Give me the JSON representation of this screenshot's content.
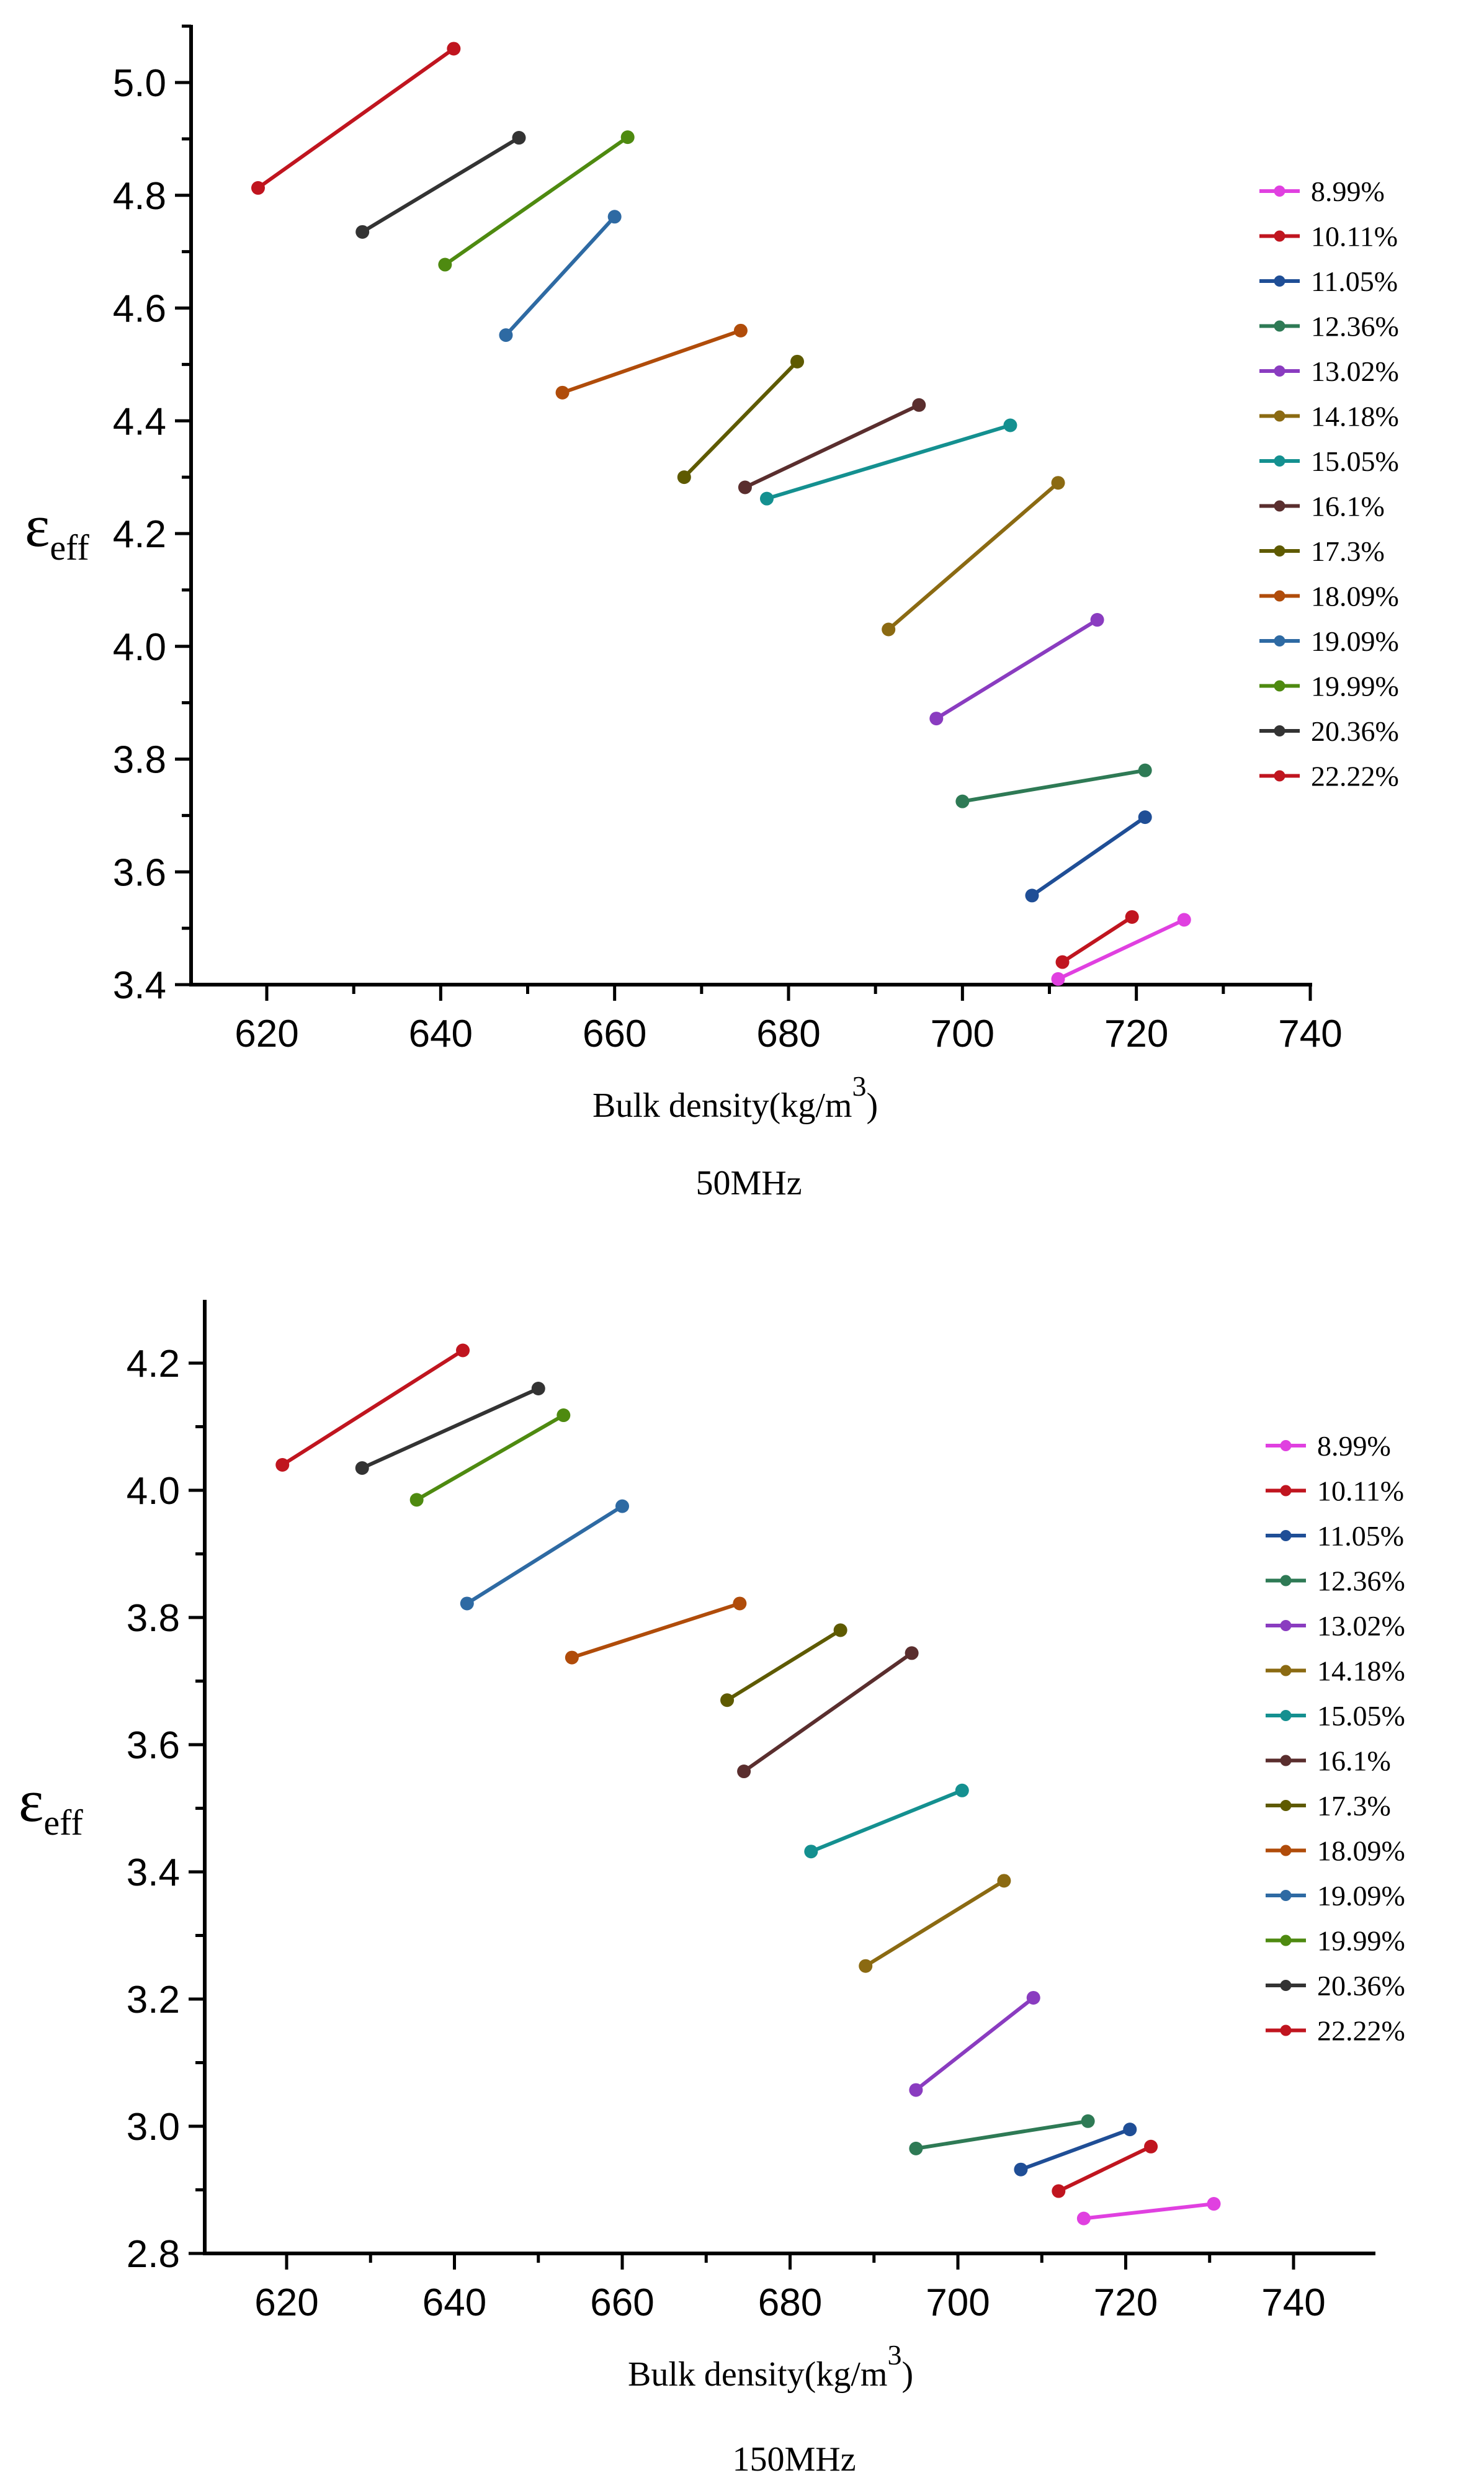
{
  "chart_data": [
    {
      "type": "line",
      "caption": "50MHz",
      "xlabel": "Bulk density(kg/m",
      "xlabel_sup": "3",
      "xlabel_close": ")",
      "ylabel": "ε",
      "ylabel_sub": "eff",
      "xlim": [
        610,
        740
      ],
      "ylim": [
        3.4,
        5.1
      ],
      "xticks": [
        "620",
        "640",
        "660",
        "680",
        "700",
        "720",
        "740"
      ],
      "yticks": [
        "3.4",
        "3.6",
        "3.8",
        "4.0",
        "4.2",
        "4.4",
        "4.6",
        "4.8",
        "5.0"
      ],
      "series": [
        {
          "name": "8.99%",
          "color": "#e040e0",
          "points": [
            [
              711.0,
              3.41
            ],
            [
              725.5,
              3.515
            ]
          ]
        },
        {
          "name": "10.11%",
          "color": "#c0151f",
          "points": [
            [
              711.5,
              3.44
            ],
            [
              719.5,
              3.52
            ]
          ]
        },
        {
          "name": "11.05%",
          "color": "#1f4e96",
          "points": [
            [
              708.0,
              3.558
            ],
            [
              721.0,
              3.697
            ]
          ]
        },
        {
          "name": "12.36%",
          "color": "#2e7a55",
          "points": [
            [
              700.0,
              3.725
            ],
            [
              721.0,
              3.78
            ]
          ]
        },
        {
          "name": "13.02%",
          "color": "#8a3cc0",
          "points": [
            [
              697.0,
              3.872
            ],
            [
              715.5,
              4.047
            ]
          ]
        },
        {
          "name": "14.18%",
          "color": "#8b6a12",
          "points": [
            [
              691.5,
              4.03
            ],
            [
              711.0,
              4.29
            ]
          ]
        },
        {
          "name": "15.05%",
          "color": "#149090",
          "points": [
            [
              677.5,
              4.262
            ],
            [
              705.5,
              4.392
            ]
          ]
        },
        {
          "name": "16.1%",
          "color": "#5a2e2e",
          "points": [
            [
              675.0,
              4.282
            ],
            [
              695.0,
              4.428
            ]
          ]
        },
        {
          "name": "17.3%",
          "color": "#5e5a00",
          "points": [
            [
              668.0,
              4.3
            ],
            [
              681.0,
              4.505
            ]
          ]
        },
        {
          "name": "18.09%",
          "color": "#b04c0a",
          "points": [
            [
              654.0,
              4.45
            ],
            [
              674.5,
              4.56
            ]
          ]
        },
        {
          "name": "19.09%",
          "color": "#2e6aa3",
          "points": [
            [
              647.5,
              4.552
            ],
            [
              660.0,
              4.762
            ]
          ]
        },
        {
          "name": "19.99%",
          "color": "#4e8a10",
          "points": [
            [
              640.5,
              4.677
            ],
            [
              661.5,
              4.903
            ]
          ]
        },
        {
          "name": "20.36%",
          "color": "#333333",
          "points": [
            [
              631.0,
              4.735
            ],
            [
              649.0,
              4.902
            ]
          ]
        },
        {
          "name": "22.22%",
          "color": "#c0151f",
          "points": [
            [
              619.0,
              4.813
            ],
            [
              641.5,
              5.06
            ]
          ]
        }
      ]
    },
    {
      "type": "line",
      "caption": "150MHz",
      "xlabel": "Bulk density(kg/m",
      "xlabel_sup": "3",
      "xlabel_close": ")",
      "ylabel": "ε",
      "ylabel_sub": "eff",
      "xlim": [
        610,
        750
      ],
      "ylim": [
        2.8,
        4.3
      ],
      "xticks": [
        "620",
        "640",
        "660",
        "680",
        "700",
        "720",
        "740"
      ],
      "yticks": [
        "2.8",
        "3.0",
        "3.2",
        "3.4",
        "3.6",
        "3.8",
        "4.0",
        "4.2"
      ],
      "series": [
        {
          "name": "8.99%",
          "color": "#e040e0",
          "points": [
            [
              715.0,
              2.855
            ],
            [
              730.5,
              2.878
            ]
          ]
        },
        {
          "name": "10.11%",
          "color": "#c0151f",
          "points": [
            [
              712.0,
              2.898
            ],
            [
              723.0,
              2.968
            ]
          ]
        },
        {
          "name": "11.05%",
          "color": "#1f4e96",
          "points": [
            [
              707.5,
              2.932
            ],
            [
              720.5,
              2.995
            ]
          ]
        },
        {
          "name": "12.36%",
          "color": "#2e7a55",
          "points": [
            [
              695.0,
              2.965
            ],
            [
              715.5,
              3.008
            ]
          ]
        },
        {
          "name": "13.02%",
          "color": "#8a3cc0",
          "points": [
            [
              695.0,
              3.057
            ],
            [
              709.0,
              3.202
            ]
          ]
        },
        {
          "name": "14.18%",
          "color": "#8b6a12",
          "points": [
            [
              689.0,
              3.252
            ],
            [
              705.5,
              3.386
            ]
          ]
        },
        {
          "name": "15.05%",
          "color": "#149090",
          "points": [
            [
              682.5,
              3.432
            ],
            [
              700.5,
              3.528
            ]
          ]
        },
        {
          "name": "16.1%",
          "color": "#5a2e2e",
          "points": [
            [
              674.5,
              3.558
            ],
            [
              694.5,
              3.744
            ]
          ]
        },
        {
          "name": "17.3%",
          "color": "#5e5a00",
          "points": [
            [
              672.5,
              3.67
            ],
            [
              686.0,
              3.78
            ]
          ]
        },
        {
          "name": "18.09%",
          "color": "#b04c0a",
          "points": [
            [
              654.0,
              3.737
            ],
            [
              674.0,
              3.822
            ]
          ]
        },
        {
          "name": "19.09%",
          "color": "#2e6aa3",
          "points": [
            [
              641.5,
              3.822
            ],
            [
              660.0,
              3.975
            ]
          ]
        },
        {
          "name": "19.99%",
          "color": "#4e8a10",
          "points": [
            [
              635.5,
              3.985
            ],
            [
              653.0,
              4.118
            ]
          ]
        },
        {
          "name": "20.36%",
          "color": "#333333",
          "points": [
            [
              629.0,
              4.035
            ],
            [
              650.0,
              4.16
            ]
          ]
        },
        {
          "name": "22.22%",
          "color": "#c0151f",
          "points": [
            [
              619.5,
              4.04
            ],
            [
              641.0,
              4.22
            ]
          ]
        }
      ]
    }
  ]
}
